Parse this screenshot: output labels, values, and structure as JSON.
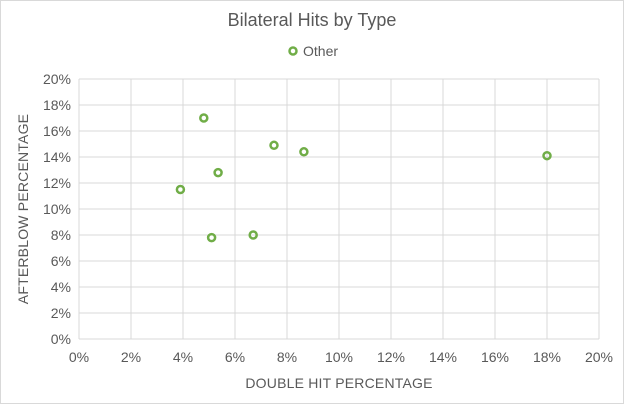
{
  "chart_data": {
    "type": "scatter",
    "title": "Bilateral Hits by Type",
    "xlabel": "DOUBLE HIT PERCENTAGE",
    "ylabel": "AFTERBLOW PERCENTAGE",
    "xlim": [
      0,
      20
    ],
    "ylim": [
      0,
      20
    ],
    "x_ticks": [
      "0%",
      "2%",
      "4%",
      "6%",
      "8%",
      "10%",
      "12%",
      "14%",
      "16%",
      "18%",
      "20%"
    ],
    "y_ticks": [
      "0%",
      "2%",
      "4%",
      "6%",
      "8%",
      "10%",
      "12%",
      "14%",
      "16%",
      "18%",
      "20%"
    ],
    "grid": true,
    "legend_position": "top",
    "series": [
      {
        "name": "Other",
        "color": "#70ad47",
        "points": [
          {
            "x": 3.9,
            "y": 11.5
          },
          {
            "x": 4.8,
            "y": 17.0
          },
          {
            "x": 5.1,
            "y": 7.8
          },
          {
            "x": 5.35,
            "y": 12.8
          },
          {
            "x": 6.7,
            "y": 8.0
          },
          {
            "x": 7.5,
            "y": 14.9
          },
          {
            "x": 8.65,
            "y": 14.4
          },
          {
            "x": 18.0,
            "y": 14.1
          }
        ]
      }
    ]
  }
}
